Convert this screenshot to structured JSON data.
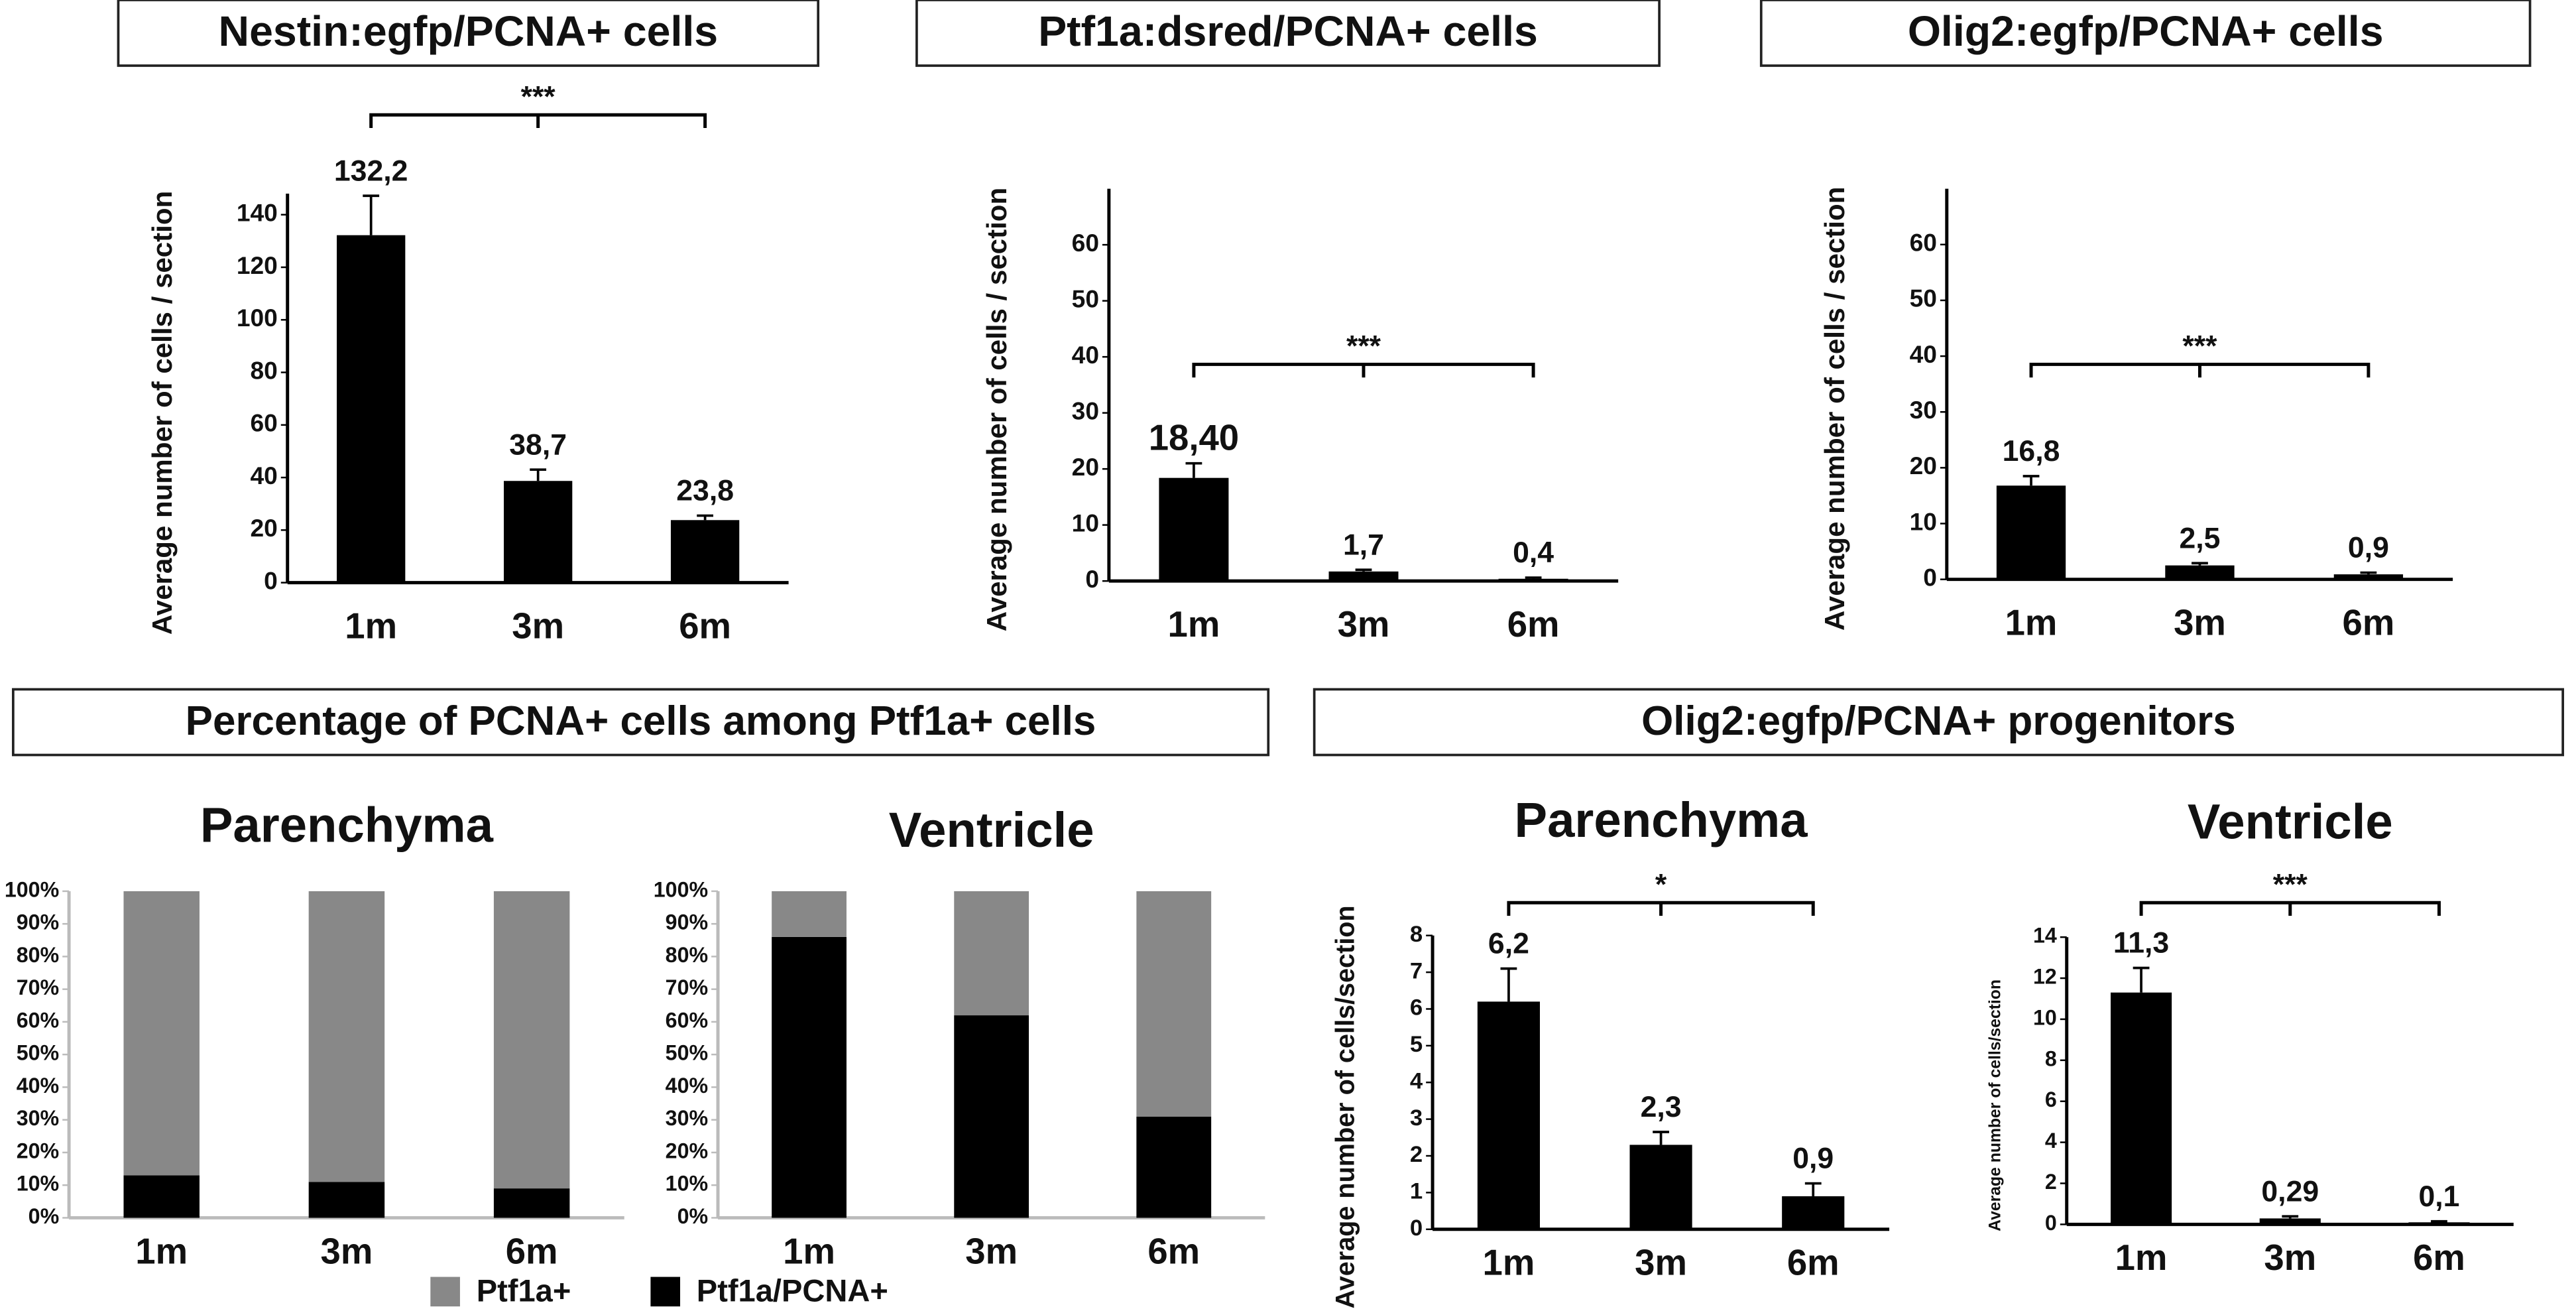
{
  "panel_titles": [
    "Percentage of PCNA+ cells among Ptf1a+ cells",
    "Olig2:egfp/PCNA+ progenitors"
  ],
  "chart_data": [
    {
      "type": "bar",
      "title": "Nestin:egfp/PCNA+ cells",
      "y_label": "Average number of cells / section",
      "categories": [
        "1m",
        "3m",
        "6m"
      ],
      "values": [
        132.2,
        38.7,
        23.8
      ],
      "value_labels": [
        "132,2",
        "38,7",
        "23,8"
      ],
      "errors": [
        15,
        4.3,
        1.7
      ],
      "color": "#000000",
      "significance": "***",
      "ylim": [
        0,
        148
      ],
      "yticks": [
        0,
        20,
        40,
        60,
        80,
        100,
        120,
        140
      ]
    },
    {
      "type": "bar",
      "title": "Ptf1a:dsred/PCNA+ cells",
      "y_label": "Average number of cells / section",
      "categories": [
        "1m",
        "3m",
        "6m"
      ],
      "values": [
        18.4,
        1.7,
        0.4
      ],
      "value_labels": [
        "18,40",
        "1,7",
        "0,4"
      ],
      "errors": [
        2.6,
        0.3,
        0.2
      ],
      "color": "#000000",
      "significance": "***",
      "ylim": [
        0,
        70
      ],
      "yticks": [
        0,
        10,
        20,
        30,
        40,
        50,
        60
      ]
    },
    {
      "type": "bar",
      "title": "Olig2:egfp/PCNA+ cells",
      "y_label": "Average number of cells / section",
      "categories": [
        "1m",
        "3m",
        "6m"
      ],
      "values": [
        16.8,
        2.5,
        0.9
      ],
      "value_labels": [
        "16,8",
        "2,5",
        "0,9"
      ],
      "errors": [
        1.7,
        0.4,
        0.3
      ],
      "color": "#000000",
      "significance": "***",
      "ylim": [
        0,
        70
      ],
      "yticks": [
        0,
        10,
        20,
        30,
        40,
        50,
        60
      ]
    },
    {
      "type": "stacked_bar",
      "title": "Parenchyma",
      "categories": [
        "1m",
        "3m",
        "6m"
      ],
      "series": [
        {
          "name": "Ptf1a+",
          "color": "#888888",
          "values": [
            87,
            89,
            91
          ]
        },
        {
          "name": "Ptf1a/PCNA+",
          "color": "#000000",
          "values": [
            13,
            11,
            9
          ]
        }
      ],
      "legend": "bottom",
      "ylim": [
        0,
        100
      ],
      "yticks": [
        {
          "value": 0,
          "label": "0%"
        },
        {
          "value": 10,
          "label": "10%"
        },
        {
          "value": 20,
          "label": "20%"
        },
        {
          "value": 30,
          "label": "30%"
        },
        {
          "value": 40,
          "label": "40%"
        },
        {
          "value": 50,
          "label": "50%"
        },
        {
          "value": 60,
          "label": "60%"
        },
        {
          "value": 70,
          "label": "70%"
        },
        {
          "value": 80,
          "label": "80%"
        },
        {
          "value": 90,
          "label": "90%"
        },
        {
          "value": 100,
          "label": "100%"
        }
      ]
    },
    {
      "type": "stacked_bar",
      "title": "Ventricle",
      "categories": [
        "1m",
        "3m",
        "6m"
      ],
      "series": [
        {
          "name": "Ptf1a+",
          "color": "#888888",
          "values": [
            14,
            38,
            69
          ]
        },
        {
          "name": "Ptf1a/PCNA+",
          "color": "#000000",
          "values": [
            86,
            62,
            31
          ]
        }
      ],
      "ylim": [
        0,
        100
      ],
      "yticks": [
        {
          "value": 0,
          "label": "0%"
        },
        {
          "value": 10,
          "label": "10%"
        },
        {
          "value": 20,
          "label": "20%"
        },
        {
          "value": 30,
          "label": "30%"
        },
        {
          "value": 40,
          "label": "40%"
        },
        {
          "value": 50,
          "label": "50%"
        },
        {
          "value": 60,
          "label": "60%"
        },
        {
          "value": 70,
          "label": "70%"
        },
        {
          "value": 80,
          "label": "80%"
        },
        {
          "value": 90,
          "label": "90%"
        },
        {
          "value": 100,
          "label": "100%"
        }
      ]
    },
    {
      "type": "bar",
      "title": "Parenchyma",
      "y_label": "Average number of cells/section",
      "categories": [
        "1m",
        "3m",
        "6m"
      ],
      "values": [
        6.2,
        2.3,
        0.9
      ],
      "value_labels": [
        "6,2",
        "2,3",
        "0,9"
      ],
      "errors": [
        0.9,
        0.35,
        0.35
      ],
      "color": "#000000",
      "significance": "*",
      "ylim": [
        0,
        8
      ],
      "yticks": [
        0,
        1,
        2,
        3,
        4,
        5,
        6,
        7,
        8
      ]
    },
    {
      "type": "bar",
      "title": "Ventricle",
      "y_label": "Average number of cells/section",
      "categories": [
        "1m",
        "3m",
        "6m"
      ],
      "values": [
        11.3,
        0.29,
        0.1
      ],
      "value_labels": [
        "11,3",
        "0,29",
        "0,1"
      ],
      "errors": [
        1.2,
        0.1,
        0.05
      ],
      "color": "#000000",
      "significance": "***",
      "ylim": [
        0,
        14
      ],
      "yticks": [
        0,
        2,
        4,
        6,
        8,
        10,
        12,
        14
      ]
    }
  ]
}
